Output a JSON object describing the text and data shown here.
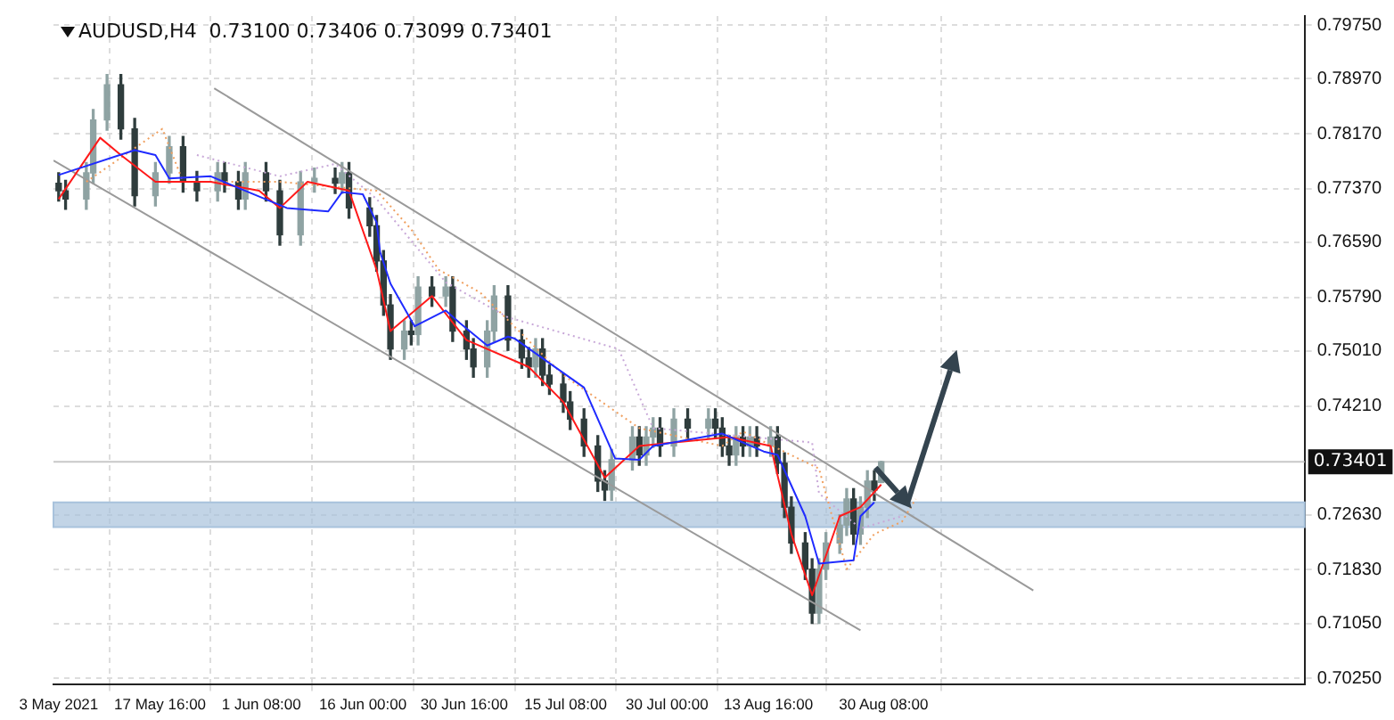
{
  "chart_data": {
    "type": "candlestick",
    "title": "AUDUSD,H4  0.73100 0.73406 0.73099 0.73401",
    "colors": [
      "#2f3d3d",
      "#2f3d3d",
      "#8fa3a3",
      "#8fa3a3",
      "#8fa3a3",
      "#2f3d3d",
      "#2f3d3d",
      "#8fa3a3",
      "#8fa3a3",
      "#2f3d3d",
      "#2f3d3d",
      "#8fa3a3",
      "#2f3d3d",
      "#2f3d3d",
      "#8fa3a3",
      "#2f3d3d",
      "#2f3d3d",
      "#8fa3a3",
      "#8fa3a3",
      "#2f3d3d",
      "#8fa3a3",
      "#2f3d3d",
      "#2f3d3d",
      "#2f3d3d",
      "#2f3d3d",
      "#2f3d3d",
      "#8fa3a3",
      "#2f3d3d",
      "#8fa3a3",
      "#2f3d3d",
      "#8fa3a3",
      "#2f3d3d",
      "#2f3d3d",
      "#2f3d3d",
      "#8fa3a3",
      "#8fa3a3",
      "#2f3d3d",
      "#2f3d3d",
      "#2f3d3d",
      "#8fa3a3",
      "#2f3d3d",
      "#2f3d3d",
      "#2f3d3d",
      "#2f3d3d",
      "#2f3d3d",
      "#2f3d3d",
      "#2f3d3d",
      "#8fa3a3",
      "#8fa3a3",
      "#2f3d3d",
      "#8fa3a3",
      "#8fa3a3",
      "#2f3d3d",
      "#8fa3a3",
      "#2f3d3d",
      "#8fa3a3",
      "#2f3d3d",
      "#2f3d3d",
      "#2f3d3d",
      "#8fa3a3",
      "#2f3d3d",
      "#8fa3a3",
      "#2f3d3d",
      "#8fa3a3",
      "#2f3d3d",
      "#2f3d3d",
      "#2f3d3d",
      "#2f3d3d",
      "#2f3d3d",
      "#8fa3a3",
      "#8fa3a3",
      "#8fa3a3",
      "#8fa3a3",
      "#2f3d3d",
      "#8fa3a3",
      "#8fa3a3",
      "#2f3d3d",
      "#8fa3a3"
    ],
    "x": [
      "2021-05-03",
      "2021-05-04",
      "2021-05-07",
      "2021-05-08",
      "2021-05-10",
      "2021-05-12",
      "2021-05-14",
      "2021-05-17",
      "2021-05-19",
      "2021-05-21",
      "2021-05-23",
      "2021-05-26",
      "2021-05-27",
      "2021-05-29",
      "2021-05-30",
      "2021-06-02",
      "2021-06-04",
      "2021-06-07",
      "2021-06-09",
      "2021-06-12",
      "2021-06-13",
      "2021-06-14",
      "2021-06-17",
      "2021-06-18",
      "2021-06-19",
      "2021-06-20",
      "2021-06-22",
      "2021-06-23",
      "2021-06-24",
      "2021-06-26",
      "2021-06-28",
      "2021-06-29",
      "2021-07-01",
      "2021-07-02",
      "2021-07-04",
      "2021-07-05",
      "2021-07-07",
      "2021-07-09",
      "2021-07-10",
      "2021-07-11",
      "2021-07-12",
      "2021-07-13",
      "2021-07-15",
      "2021-07-16",
      "2021-07-18",
      "2021-07-20",
      "2021-07-21",
      "2021-07-22",
      "2021-07-25",
      "2021-07-26",
      "2021-07-27",
      "2021-07-28",
      "2021-07-29",
      "2021-07-31",
      "2021-08-02",
      "2021-08-05",
      "2021-08-06",
      "2021-08-07",
      "2021-08-08",
      "2021-08-09",
      "2021-08-10",
      "2021-08-11",
      "2021-08-12",
      "2021-08-14",
      "2021-08-15",
      "2021-08-16",
      "2021-08-17",
      "2021-08-19",
      "2021-08-20",
      "2021-08-21",
      "2021-08-22",
      "2021-08-24",
      "2021-08-25",
      "2021-08-26",
      "2021-08-27",
      "2021-08-28",
      "2021-08-29",
      "2021-08-30"
    ],
    "ohlc": [
      [
        0.7745,
        0.776,
        0.7719,
        0.7734
      ],
      [
        0.7734,
        0.7749,
        0.7707,
        0.7722
      ],
      [
        0.7722,
        0.7775,
        0.7707,
        0.776
      ],
      [
        0.776,
        0.7852,
        0.7745,
        0.7837
      ],
      [
        0.7837,
        0.7903,
        0.7822,
        0.7888
      ],
      [
        0.7888,
        0.7903,
        0.7809,
        0.7824
      ],
      [
        0.7824,
        0.7839,
        0.7712,
        0.7727
      ],
      [
        0.7727,
        0.7775,
        0.7712,
        0.776
      ],
      [
        0.776,
        0.7813,
        0.7745,
        0.7798
      ],
      [
        0.7798,
        0.7813,
        0.7732,
        0.7747
      ],
      [
        0.7747,
        0.7762,
        0.7719,
        0.7734
      ],
      [
        0.7734,
        0.7775,
        0.7719,
        0.776
      ],
      [
        0.776,
        0.7775,
        0.7732,
        0.7747
      ],
      [
        0.7747,
        0.7762,
        0.7707,
        0.7722
      ],
      [
        0.7722,
        0.7775,
        0.7707,
        0.776
      ],
      [
        0.776,
        0.7775,
        0.7719,
        0.7734
      ],
      [
        0.7734,
        0.7749,
        0.7655,
        0.767
      ],
      [
        0.767,
        0.7762,
        0.7655,
        0.7747
      ],
      [
        0.7747,
        0.7767,
        0.7732,
        0.7752
      ],
      [
        0.7752,
        0.7767,
        0.773,
        0.7745
      ],
      [
        0.7745,
        0.7775,
        0.773,
        0.776
      ],
      [
        0.776,
        0.7775,
        0.7694,
        0.7709
      ],
      [
        0.7709,
        0.7724,
        0.7668,
        0.7683
      ],
      [
        0.7683,
        0.7698,
        0.7617,
        0.7632
      ],
      [
        0.7632,
        0.7647,
        0.7553,
        0.7568
      ],
      [
        0.7568,
        0.7583,
        0.7489,
        0.7504
      ],
      [
        0.7504,
        0.7545,
        0.7489,
        0.753
      ],
      [
        0.753,
        0.7545,
        0.751,
        0.7525
      ],
      [
        0.7525,
        0.7609,
        0.751,
        0.7594
      ],
      [
        0.7594,
        0.7609,
        0.7566,
        0.7581
      ],
      [
        0.7581,
        0.7609,
        0.7566,
        0.7594
      ],
      [
        0.7594,
        0.7609,
        0.7515,
        0.753
      ],
      [
        0.753,
        0.7545,
        0.7489,
        0.7504
      ],
      [
        0.7504,
        0.7519,
        0.7463,
        0.7478
      ],
      [
        0.7478,
        0.7545,
        0.7463,
        0.753
      ],
      [
        0.753,
        0.7596,
        0.7515,
        0.7581
      ],
      [
        0.7581,
        0.7596,
        0.7502,
        0.7517
      ],
      [
        0.7517,
        0.7532,
        0.7476,
        0.7491
      ],
      [
        0.7491,
        0.7506,
        0.7463,
        0.7478
      ],
      [
        0.7478,
        0.7519,
        0.7463,
        0.7504
      ],
      [
        0.7504,
        0.7519,
        0.7451,
        0.7466
      ],
      [
        0.7466,
        0.7481,
        0.7438,
        0.7453
      ],
      [
        0.7453,
        0.7468,
        0.7412,
        0.7427
      ],
      [
        0.7427,
        0.7442,
        0.7387,
        0.7402
      ],
      [
        0.7402,
        0.7417,
        0.7348,
        0.7363
      ],
      [
        0.7363,
        0.7378,
        0.7297,
        0.7312
      ],
      [
        0.7312,
        0.7327,
        0.7284,
        0.7299
      ],
      [
        0.7299,
        0.7358,
        0.7284,
        0.7343
      ],
      [
        0.7343,
        0.7391,
        0.7328,
        0.7376
      ],
      [
        0.7376,
        0.7391,
        0.7335,
        0.735
      ],
      [
        0.735,
        0.7391,
        0.7335,
        0.7376
      ],
      [
        0.7376,
        0.7404,
        0.7361,
        0.7389
      ],
      [
        0.7389,
        0.7404,
        0.7348,
        0.7363
      ],
      [
        0.7363,
        0.7417,
        0.7348,
        0.7402
      ],
      [
        0.7402,
        0.7417,
        0.7374,
        0.7389
      ],
      [
        0.7389,
        0.7417,
        0.7374,
        0.7402
      ],
      [
        0.7402,
        0.7417,
        0.7374,
        0.7389
      ],
      [
        0.7389,
        0.7404,
        0.7348,
        0.7363
      ],
      [
        0.7363,
        0.7378,
        0.7335,
        0.735
      ],
      [
        0.735,
        0.7391,
        0.7335,
        0.7376
      ],
      [
        0.7376,
        0.7391,
        0.7348,
        0.7363
      ],
      [
        0.7363,
        0.7391,
        0.7348,
        0.7376
      ],
      [
        0.7376,
        0.7391,
        0.7348,
        0.7363
      ],
      [
        0.7363,
        0.7391,
        0.7348,
        0.7376
      ],
      [
        0.7376,
        0.7391,
        0.7323,
        0.7338
      ],
      [
        0.7338,
        0.7353,
        0.7259,
        0.7274
      ],
      [
        0.7274,
        0.7289,
        0.7207,
        0.7222
      ],
      [
        0.7222,
        0.7237,
        0.7169,
        0.7184
      ],
      [
        0.7184,
        0.7199,
        0.7105,
        0.712
      ],
      [
        0.712,
        0.7199,
        0.7105,
        0.7184
      ],
      [
        0.7184,
        0.7237,
        0.7169,
        0.7222
      ],
      [
        0.7222,
        0.7263,
        0.7207,
        0.7248
      ],
      [
        0.7248,
        0.7301,
        0.7233,
        0.7286
      ],
      [
        0.7286,
        0.7301,
        0.722,
        0.7235
      ],
      [
        0.7235,
        0.7289,
        0.722,
        0.7274
      ],
      [
        0.7274,
        0.7327,
        0.7259,
        0.7312
      ],
      [
        0.7312,
        0.7327,
        0.7284,
        0.7299
      ],
      [
        0.731,
        0.73406,
        0.73099,
        0.73401
      ]
    ],
    "series": [
      {
        "type": "line",
        "color": "#1f2bff",
        "x": [
          "2021-05-03",
          "2021-05-14",
          "2021-05-17",
          "2021-05-19",
          "2021-05-25",
          "2021-05-30",
          "2021-06-05",
          "2021-06-11",
          "2021-06-13",
          "2021-06-16",
          "2021-06-18",
          "2021-06-18T12:00",
          "2021-06-20",
          "2021-06-23T12:00",
          "2021-06-28",
          "2021-06-30",
          "2021-07-04",
          "2021-07-07",
          "2021-07-08",
          "2021-07-18",
          "2021-07-22T12:00",
          "2021-07-26",
          "2021-07-28",
          "2021-08-07",
          "2021-08-13",
          "2021-08-15",
          "2021-08-19",
          "2021-08-21",
          "2021-08-26",
          "2021-08-27",
          "2021-08-29"
        ],
        "values": [
          0.7757,
          0.7793,
          0.7786,
          0.7752,
          0.7755,
          0.7734,
          0.7709,
          0.7704,
          0.7732,
          0.7729,
          0.7688,
          0.7645,
          0.7599,
          0.7537,
          0.756,
          0.7542,
          0.7509,
          0.7522,
          0.7519,
          0.7448,
          0.7345,
          0.7343,
          0.7363,
          0.7381,
          0.7355,
          0.735,
          0.7261,
          0.7192,
          0.7197,
          0.7261,
          0.7281
        ],
        "line_style": "solid"
      },
      {
        "type": "line",
        "color": "#ff1a1a",
        "x": [
          "2021-05-03",
          "2021-05-09",
          "2021-05-12",
          "2021-05-17",
          "2021-05-25",
          "2021-06-01",
          "2021-06-04",
          "2021-06-08",
          "2021-06-14",
          "2021-06-18",
          "2021-06-20",
          "2021-06-26",
          "2021-07-01",
          "2021-07-10",
          "2021-07-15",
          "2021-07-21",
          "2021-07-26",
          "2021-08-08",
          "2021-08-14",
          "2021-08-17",
          "2021-08-20",
          "2021-08-24",
          "2021-08-27",
          "2021-08-30"
        ],
        "values": [
          0.7722,
          0.7811,
          0.7786,
          0.7747,
          0.7747,
          0.7734,
          0.7709,
          0.7747,
          0.7734,
          0.7619,
          0.753,
          0.7581,
          0.7517,
          0.7478,
          0.7427,
          0.7317,
          0.7363,
          0.7376,
          0.7363,
          0.7235,
          0.7146,
          0.7261,
          0.7274,
          0.7307
        ],
        "line_style": "solid"
      },
      {
        "type": "line",
        "color": "#f0a060",
        "x": [
          "2021-05-07",
          "2021-05-18",
          "2021-05-21",
          "2021-06-04",
          "2021-06-18",
          "2021-06-23",
          "2021-06-27",
          "2021-07-03",
          "2021-07-15",
          "2021-07-26",
          "2021-08-07",
          "2021-08-10",
          "2021-08-21",
          "2021-08-25",
          "2021-08-29",
          "2021-09-02",
          "2021-09-04"
        ],
        "values": [
          0.7747,
          0.7824,
          0.7747,
          0.7747,
          0.7734,
          0.7678,
          0.7619,
          0.7586,
          0.7466,
          0.7389,
          0.7363,
          0.7384,
          0.733,
          0.7184,
          0.7235,
          0.7253,
          0.7286
        ],
        "line_style": "dotted"
      },
      {
        "type": "line",
        "color": "#c8a8d8",
        "x": [
          "2021-05-23",
          "2021-06-04",
          "2021-06-12",
          "2021-06-18",
          "2021-06-28",
          "2021-07-07",
          "2021-07-23",
          "2021-07-28",
          "2021-08-20",
          "2021-08-21",
          "2021-08-27",
          "2021-09-02"
        ],
        "values": [
          0.7786,
          0.7755,
          0.7773,
          0.7722,
          0.7601,
          0.755,
          0.7504,
          0.7389,
          0.7368,
          0.7294,
          0.7243,
          0.7261
        ],
        "line_style": "dotted"
      },
      {
        "type": "line",
        "color": "#9a9a9a",
        "x": [
          "2021-05-25T12:00",
          "2021-09-21"
        ],
        "values": [
          0.7883,
          0.7153
        ],
        "line_style": "solid"
      },
      {
        "type": "line",
        "color": "#9a9a9a",
        "x": [
          "2021-05-02T06:00",
          "2021-08-27"
        ],
        "values": [
          0.7778,
          0.7095
        ],
        "line_style": "solid"
      }
    ],
    "ref_lines": [
      {
        "axis": "y",
        "value": 0.73401,
        "label": "0.73401",
        "color": "#c8c8c8"
      }
    ],
    "bands": [
      {
        "axis": "y",
        "from": 0.7245,
        "to": 0.7281,
        "color": "#a8c2dc"
      }
    ],
    "xlim": [
      "2021-05-02T06:00",
      "2021-10-30T06:00"
    ],
    "xticks": [
      {
        "value": "2021-05-03",
        "label": "3 May 2021"
      },
      {
        "value": "2021-05-17T16:00",
        "label": "17 May 16:00"
      },
      {
        "value": "2021-06-01T08:00",
        "label": "1 Jun 08:00"
      },
      {
        "value": "2021-06-16T00:00",
        "label": "16 Jun 00:00"
      },
      {
        "value": "2021-06-30T16:00",
        "label": "30 Jun 16:00"
      },
      {
        "value": "2021-07-15T08:00",
        "label": "15 Jul 08:00"
      },
      {
        "value": "2021-07-30T00:00",
        "label": "30 Jul 00:00"
      },
      {
        "value": "2021-08-13T16:00",
        "label": "13 Aug 16:00"
      },
      {
        "value": "2021-08-30T08:00",
        "label": "30 Aug 08:00"
      }
    ],
    "ylim": [
      0.7017,
      0.7988
    ],
    "yticks": [
      {
        "value": 0.7975,
        "label": "0.79750"
      },
      {
        "value": 0.7897,
        "label": "0.78970"
      },
      {
        "value": 0.7817,
        "label": "0.78170"
      },
      {
        "value": 0.7737,
        "label": "0.77370"
      },
      {
        "value": 0.7659,
        "label": "0.76590"
      },
      {
        "value": 0.7579,
        "label": "0.75790"
      },
      {
        "value": 0.7501,
        "label": "0.75010"
      },
      {
        "value": 0.7421,
        "label": "0.74210"
      },
      {
        "value": 0.7263,
        "label": "0.72630"
      },
      {
        "value": 0.7183,
        "label": "0.71830"
      },
      {
        "value": 0.7105,
        "label": "0.71050"
      },
      {
        "value": 0.7025,
        "label": "0.70250"
      }
    ],
    "grid": true,
    "legend": false
  }
}
